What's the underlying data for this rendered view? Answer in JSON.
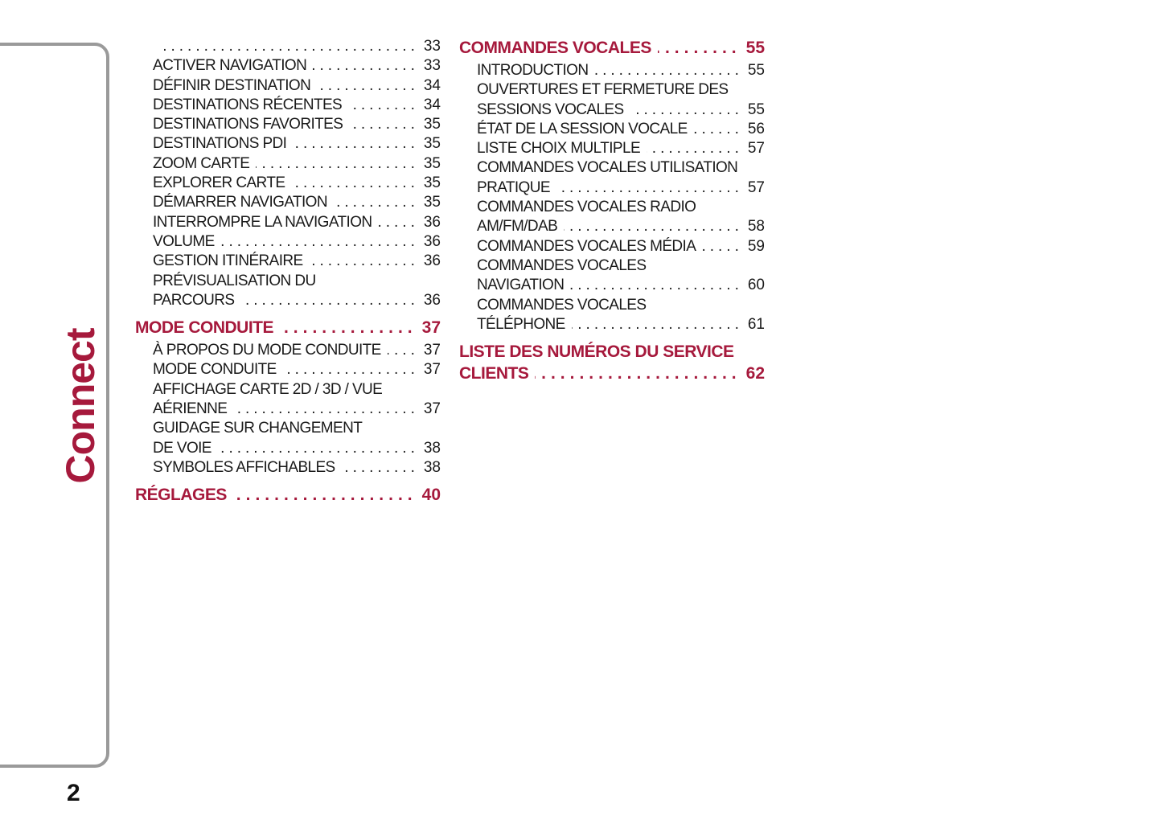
{
  "sidebar": {
    "section_label": "Connect",
    "page_number": "2"
  },
  "accent_color": "#a6193c",
  "left_column": [
    {
      "type": "sub",
      "lines": [
        ""
      ],
      "page": "33"
    },
    {
      "type": "sub",
      "lines": [
        "ACTIVER NAVIGATION"
      ],
      "page": "33"
    },
    {
      "type": "sub",
      "lines": [
        "DÉFINIR DESTINATION"
      ],
      "page": "34"
    },
    {
      "type": "sub",
      "lines": [
        "DESTINATIONS RÉCENTES"
      ],
      "page": "34"
    },
    {
      "type": "sub",
      "lines": [
        "DESTINATIONS FAVORITES"
      ],
      "page": "35"
    },
    {
      "type": "sub",
      "lines": [
        "DESTINATIONS PDI"
      ],
      "page": "35"
    },
    {
      "type": "sub",
      "lines": [
        "ZOOM CARTE"
      ],
      "page": "35"
    },
    {
      "type": "sub",
      "lines": [
        "EXPLORER CARTE"
      ],
      "page": "35"
    },
    {
      "type": "sub",
      "lines": [
        "DÉMARRER NAVIGATION"
      ],
      "page": "35"
    },
    {
      "type": "sub",
      "lines": [
        "INTERROMPRE LA NAVIGATION"
      ],
      "page": "36"
    },
    {
      "type": "sub",
      "lines": [
        "VOLUME"
      ],
      "page": "36"
    },
    {
      "type": "sub",
      "lines": [
        "GESTION ITINÉRAIRE"
      ],
      "page": "36"
    },
    {
      "type": "sub",
      "lines": [
        "PRÉVISUALISATION DU",
        "PARCOURS"
      ],
      "page": "36"
    },
    {
      "type": "head",
      "lines": [
        "MODE CONDUITE"
      ],
      "page": "37"
    },
    {
      "type": "sub",
      "lines": [
        "À PROPOS DU MODE CONDUITE"
      ],
      "page": "37"
    },
    {
      "type": "sub",
      "lines": [
        "MODE CONDUITE"
      ],
      "page": "37"
    },
    {
      "type": "sub",
      "lines": [
        "AFFICHAGE CARTE 2D / 3D / VUE",
        "AÉRIENNE"
      ],
      "page": "37"
    },
    {
      "type": "sub",
      "lines": [
        "GUIDAGE SUR CHANGEMENT",
        "DE VOIE"
      ],
      "page": "38"
    },
    {
      "type": "sub",
      "lines": [
        "SYMBOLES AFFICHABLES"
      ],
      "page": "38"
    },
    {
      "type": "head",
      "lines": [
        "RÉGLAGES"
      ],
      "page": "40"
    }
  ],
  "right_column": [
    {
      "type": "head",
      "lines": [
        "COMMANDES VOCALES"
      ],
      "page": "55"
    },
    {
      "type": "sub",
      "lines": [
        "INTRODUCTION"
      ],
      "page": "55"
    },
    {
      "type": "sub",
      "lines": [
        "OUVERTURES ET FERMETURE DES",
        "SESSIONS VOCALES"
      ],
      "page": "55"
    },
    {
      "type": "sub",
      "lines": [
        "ÉTAT DE LA SESSION VOCALE"
      ],
      "page": "56"
    },
    {
      "type": "sub",
      "lines": [
        "LISTE CHOIX MULTIPLE"
      ],
      "page": "57"
    },
    {
      "type": "sub",
      "lines": [
        "COMMANDES VOCALES UTILISATION",
        "PRATIQUE"
      ],
      "page": "57"
    },
    {
      "type": "sub",
      "lines": [
        "COMMANDES VOCALES RADIO",
        "AM/FM/DAB"
      ],
      "page": "58"
    },
    {
      "type": "sub",
      "lines": [
        "COMMANDES VOCALES MÉDIA"
      ],
      "page": "59"
    },
    {
      "type": "sub",
      "lines": [
        "COMMANDES VOCALES",
        "NAVIGATION"
      ],
      "page": "60"
    },
    {
      "type": "sub",
      "lines": [
        "COMMANDES VOCALES",
        "TÉLÉPHONE"
      ],
      "page": "61"
    },
    {
      "type": "head",
      "lines": [
        "LISTE DES NUMÉROS DU SERVICE",
        "CLIENTS"
      ],
      "page": "62"
    }
  ]
}
